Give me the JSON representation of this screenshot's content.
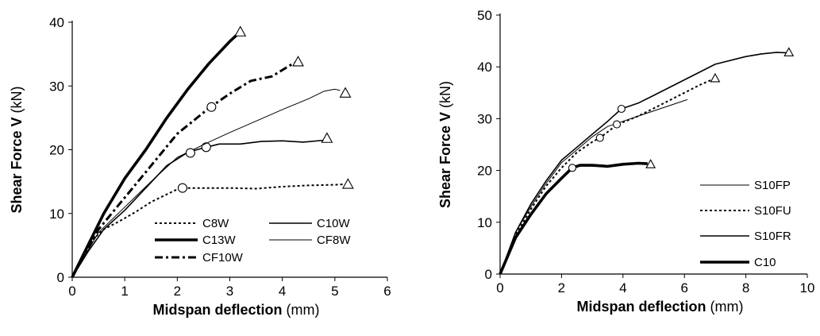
{
  "chart_data": [
    {
      "type": "line",
      "xlabel": "Midspan deflection",
      "xunit": "(mm)",
      "ylabel": "Shear Force V",
      "yunit": "(kN)",
      "xlim": [
        0,
        6
      ],
      "ylim": [
        0,
        40
      ],
      "xticks": [
        "0",
        "1",
        "2",
        "3",
        "4",
        "5",
        "6"
      ],
      "yticks": [
        "0",
        "10",
        "20",
        "30",
        "40"
      ],
      "grid": false,
      "legend_position": "bottom-right",
      "series": [
        {
          "name": "C8W",
          "style": "dotted",
          "x": [
            0,
            0.2,
            0.4,
            0.6,
            0.9,
            1.2,
            1.5,
            1.8,
            2.0,
            2.1,
            2.5,
            3.0,
            3.5,
            4.0,
            4.5,
            5.0,
            5.25
          ],
          "y": [
            0,
            3,
            6,
            7.5,
            8.8,
            10.2,
            11.8,
            13.0,
            13.8,
            14.0,
            14.0,
            14.0,
            13.9,
            14.2,
            14.4,
            14.5,
            14.6
          ],
          "markers": [
            {
              "type": "circle",
              "x": 2.1,
              "y": 14.0
            },
            {
              "type": "triangle",
              "x": 5.25,
              "y": 14.6
            }
          ]
        },
        {
          "name": "C10W",
          "style": "solid-medium",
          "x": [
            0,
            0.3,
            0.6,
            1.0,
            1.4,
            1.8,
            2.2,
            2.55,
            2.8,
            3.2,
            3.6,
            4.0,
            4.4,
            4.8,
            4.85
          ],
          "y": [
            0,
            4,
            7.5,
            10.5,
            14.0,
            17.5,
            19.6,
            20.4,
            20.9,
            20.9,
            21.3,
            21.4,
            21.2,
            21.5,
            21.8
          ],
          "markers": [
            {
              "type": "circle",
              "x": 2.55,
              "y": 20.4
            },
            {
              "type": "triangle",
              "x": 4.85,
              "y": 21.8
            }
          ]
        },
        {
          "name": "C13W",
          "style": "solid-thick",
          "x": [
            0,
            0.3,
            0.6,
            1.0,
            1.4,
            1.8,
            2.2,
            2.6,
            3.0,
            3.2
          ],
          "y": [
            0,
            5,
            10,
            15.5,
            20,
            25,
            29.5,
            33.5,
            37,
            38.5
          ],
          "markers": [
            {
              "type": "triangle",
              "x": 3.2,
              "y": 38.5
            }
          ]
        },
        {
          "name": "CF8W",
          "style": "solid-thin",
          "x": [
            0,
            0.5,
            1.0,
            1.5,
            2.0,
            2.3,
            2.6,
            3.0,
            3.5,
            4.0,
            4.5,
            4.8,
            5.0,
            5.1
          ],
          "y": [
            0,
            7,
            11,
            15,
            18.8,
            20.0,
            21.2,
            22.7,
            24.5,
            26.3,
            28.0,
            29.2,
            29.5,
            29.3
          ],
          "markers": [
            {
              "type": "circle",
              "x": 2.25,
              "y": 19.5
            },
            {
              "type": "triangle",
              "x": 5.2,
              "y": 28.9
            }
          ]
        },
        {
          "name": "CF10W",
          "style": "dash-dot",
          "x": [
            0,
            0.5,
            1.0,
            1.5,
            2.0,
            2.3,
            2.6,
            3.0,
            3.4,
            3.8,
            4.2,
            4.3
          ],
          "y": [
            0,
            7.5,
            12.5,
            17.5,
            22.5,
            24.5,
            26.5,
            28.8,
            30.8,
            31.5,
            33.5,
            33.8
          ],
          "markers": [
            {
              "type": "circle",
              "x": 2.65,
              "y": 26.7
            },
            {
              "type": "triangle",
              "x": 4.3,
              "y": 33.8
            }
          ]
        }
      ]
    },
    {
      "type": "line",
      "xlabel": "Midspan deflection",
      "xunit": "(mm)",
      "ylabel": "Shear Force V",
      "yunit": "(kN)",
      "xlim": [
        0,
        10
      ],
      "ylim": [
        0,
        50
      ],
      "xticks": [
        "0",
        "2",
        "4",
        "6",
        "8",
        "10"
      ],
      "yticks": [
        "0",
        "10",
        "20",
        "30",
        "40",
        "50"
      ],
      "grid": false,
      "legend_position": "right",
      "series": [
        {
          "name": "S10FP",
          "style": "solid-thin",
          "x": [
            0,
            0.5,
            1.0,
            1.5,
            2.0,
            2.5,
            3.0,
            3.5,
            4.0,
            4.5,
            5.0,
            5.5,
            6.0,
            6.1
          ],
          "y": [
            0,
            8,
            13,
            17.5,
            21.5,
            24,
            26.5,
            28.5,
            29.5,
            30.5,
            31.5,
            32.5,
            33.5,
            33.7
          ],
          "markers": []
        },
        {
          "name": "S10FU",
          "style": "dotted",
          "x": [
            0,
            0.5,
            1.0,
            1.5,
            2.0,
            2.5,
            3.0,
            3.25,
            3.8,
            4.5,
            5.0,
            5.5,
            6.0,
            6.5,
            7.0
          ],
          "y": [
            0,
            7.5,
            12.5,
            17,
            20.5,
            23.5,
            25.5,
            26.3,
            28.8,
            30.5,
            32,
            33.5,
            35,
            36.5,
            37.8
          ],
          "markers": [
            {
              "type": "circle",
              "x": 3.25,
              "y": 26.3
            },
            {
              "type": "circle",
              "x": 3.8,
              "y": 28.9
            },
            {
              "type": "triangle",
              "x": 7.0,
              "y": 37.8
            }
          ]
        },
        {
          "name": "S10FR",
          "style": "solid-medium",
          "x": [
            0,
            0.5,
            1.0,
            1.5,
            2.0,
            2.5,
            3.0,
            3.5,
            3.95,
            4.5,
            5.0,
            6.0,
            7.0,
            8.0,
            8.5,
            9.0,
            9.4
          ],
          "y": [
            0,
            8,
            13.5,
            18,
            22,
            24.5,
            27,
            29.5,
            31.9,
            33,
            34.5,
            37.5,
            40.5,
            42,
            42.5,
            42.8,
            42.7
          ],
          "markers": [
            {
              "type": "circle",
              "x": 3.95,
              "y": 31.9
            },
            {
              "type": "triangle",
              "x": 9.4,
              "y": 42.8
            }
          ]
        },
        {
          "name": "C10",
          "style": "solid-thick",
          "x": [
            0,
            0.5,
            1.0,
            1.5,
            2.0,
            2.35,
            2.6,
            3.0,
            3.5,
            4.0,
            4.5,
            4.8
          ],
          "y": [
            0,
            7,
            11.5,
            15.5,
            18.5,
            20.5,
            21.0,
            21.0,
            20.8,
            21.2,
            21.4,
            21.3
          ],
          "markers": [
            {
              "type": "circle",
              "x": 2.35,
              "y": 20.5
            },
            {
              "type": "triangle",
              "x": 4.9,
              "y": 21.2
            }
          ]
        }
      ]
    }
  ]
}
